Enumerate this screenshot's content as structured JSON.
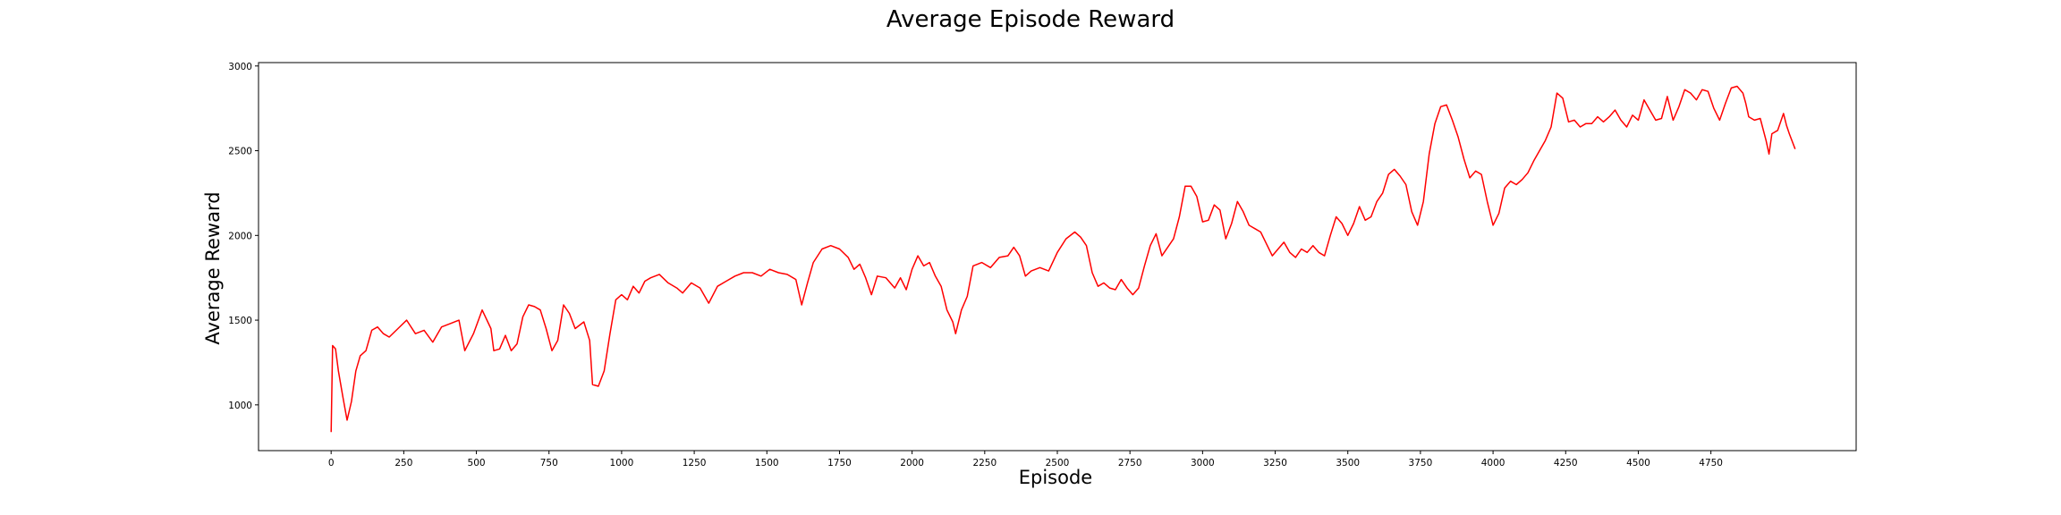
{
  "chart_data": {
    "type": "line",
    "title": "Average Episode Reward",
    "xlabel": "Episode",
    "ylabel": "Average Reward",
    "xlim": [
      -250,
      5250
    ],
    "ylim": [
      730,
      3020
    ],
    "xticks": [
      0,
      250,
      500,
      750,
      1000,
      1250,
      1500,
      1750,
      2000,
      2250,
      2500,
      2750,
      3000,
      3250,
      3500,
      3750,
      4000,
      4250,
      4500,
      4750
    ],
    "yticks": [
      1000,
      1500,
      2000,
      2500,
      3000
    ],
    "grid": false,
    "legend": "none",
    "series": [
      {
        "name": "",
        "color": "#ff0000",
        "points": [
          [
            0,
            840
          ],
          [
            5,
            1350
          ],
          [
            15,
            1330
          ],
          [
            25,
            1200
          ],
          [
            40,
            1050
          ],
          [
            55,
            910
          ],
          [
            70,
            1020
          ],
          [
            85,
            1200
          ],
          [
            100,
            1290
          ],
          [
            120,
            1320
          ],
          [
            140,
            1440
          ],
          [
            160,
            1460
          ],
          [
            180,
            1420
          ],
          [
            200,
            1400
          ],
          [
            230,
            1450
          ],
          [
            260,
            1500
          ],
          [
            290,
            1420
          ],
          [
            320,
            1440
          ],
          [
            350,
            1370
          ],
          [
            380,
            1460
          ],
          [
            410,
            1480
          ],
          [
            440,
            1500
          ],
          [
            460,
            1320
          ],
          [
            490,
            1420
          ],
          [
            520,
            1560
          ],
          [
            550,
            1450
          ],
          [
            560,
            1320
          ],
          [
            580,
            1330
          ],
          [
            600,
            1410
          ],
          [
            620,
            1320
          ],
          [
            640,
            1360
          ],
          [
            660,
            1520
          ],
          [
            680,
            1590
          ],
          [
            700,
            1580
          ],
          [
            720,
            1560
          ],
          [
            740,
            1450
          ],
          [
            760,
            1320
          ],
          [
            780,
            1380
          ],
          [
            800,
            1590
          ],
          [
            820,
            1540
          ],
          [
            840,
            1450
          ],
          [
            870,
            1490
          ],
          [
            890,
            1380
          ],
          [
            900,
            1120
          ],
          [
            920,
            1110
          ],
          [
            940,
            1200
          ],
          [
            960,
            1420
          ],
          [
            980,
            1620
          ],
          [
            1000,
            1650
          ],
          [
            1020,
            1620
          ],
          [
            1040,
            1700
          ],
          [
            1060,
            1660
          ],
          [
            1080,
            1730
          ],
          [
            1100,
            1750
          ],
          [
            1130,
            1770
          ],
          [
            1160,
            1720
          ],
          [
            1190,
            1690
          ],
          [
            1210,
            1660
          ],
          [
            1240,
            1720
          ],
          [
            1270,
            1690
          ],
          [
            1300,
            1600
          ],
          [
            1330,
            1700
          ],
          [
            1360,
            1730
          ],
          [
            1390,
            1760
          ],
          [
            1420,
            1780
          ],
          [
            1450,
            1780
          ],
          [
            1480,
            1760
          ],
          [
            1510,
            1800
          ],
          [
            1540,
            1780
          ],
          [
            1570,
            1770
          ],
          [
            1600,
            1740
          ],
          [
            1620,
            1590
          ],
          [
            1640,
            1720
          ],
          [
            1660,
            1840
          ],
          [
            1690,
            1920
          ],
          [
            1720,
            1940
          ],
          [
            1750,
            1920
          ],
          [
            1780,
            1870
          ],
          [
            1800,
            1800
          ],
          [
            1820,
            1830
          ],
          [
            1840,
            1750
          ],
          [
            1860,
            1650
          ],
          [
            1880,
            1760
          ],
          [
            1910,
            1750
          ],
          [
            1940,
            1690
          ],
          [
            1960,
            1750
          ],
          [
            1980,
            1680
          ],
          [
            2000,
            1800
          ],
          [
            2020,
            1880
          ],
          [
            2040,
            1820
          ],
          [
            2060,
            1840
          ],
          [
            2080,
            1760
          ],
          [
            2100,
            1700
          ],
          [
            2120,
            1560
          ],
          [
            2140,
            1490
          ],
          [
            2150,
            1420
          ],
          [
            2170,
            1560
          ],
          [
            2190,
            1640
          ],
          [
            2210,
            1820
          ],
          [
            2240,
            1840
          ],
          [
            2270,
            1810
          ],
          [
            2300,
            1870
          ],
          [
            2330,
            1880
          ],
          [
            2350,
            1930
          ],
          [
            2370,
            1880
          ],
          [
            2390,
            1760
          ],
          [
            2410,
            1790
          ],
          [
            2440,
            1810
          ],
          [
            2470,
            1790
          ],
          [
            2500,
            1900
          ],
          [
            2530,
            1980
          ],
          [
            2560,
            2020
          ],
          [
            2580,
            1990
          ],
          [
            2600,
            1940
          ],
          [
            2620,
            1780
          ],
          [
            2640,
            1700
          ],
          [
            2660,
            1720
          ],
          [
            2680,
            1690
          ],
          [
            2700,
            1680
          ],
          [
            2720,
            1740
          ],
          [
            2740,
            1690
          ],
          [
            2760,
            1650
          ],
          [
            2780,
            1690
          ],
          [
            2800,
            1820
          ],
          [
            2820,
            1940
          ],
          [
            2840,
            2010
          ],
          [
            2860,
            1880
          ],
          [
            2880,
            1930
          ],
          [
            2900,
            1980
          ],
          [
            2920,
            2110
          ],
          [
            2940,
            2290
          ],
          [
            2960,
            2290
          ],
          [
            2980,
            2230
          ],
          [
            3000,
            2080
          ],
          [
            3020,
            2090
          ],
          [
            3040,
            2180
          ],
          [
            3060,
            2150
          ],
          [
            3080,
            1980
          ],
          [
            3100,
            2070
          ],
          [
            3120,
            2200
          ],
          [
            3140,
            2140
          ],
          [
            3160,
            2060
          ],
          [
            3180,
            2040
          ],
          [
            3200,
            2020
          ],
          [
            3220,
            1950
          ],
          [
            3240,
            1880
          ],
          [
            3260,
            1920
          ],
          [
            3280,
            1960
          ],
          [
            3300,
            1900
          ],
          [
            3320,
            1870
          ],
          [
            3340,
            1920
          ],
          [
            3360,
            1900
          ],
          [
            3380,
            1940
          ],
          [
            3400,
            1900
          ],
          [
            3420,
            1880
          ],
          [
            3440,
            2000
          ],
          [
            3460,
            2110
          ],
          [
            3480,
            2070
          ],
          [
            3500,
            2000
          ],
          [
            3520,
            2070
          ],
          [
            3540,
            2170
          ],
          [
            3560,
            2090
          ],
          [
            3580,
            2110
          ],
          [
            3600,
            2200
          ],
          [
            3620,
            2250
          ],
          [
            3640,
            2360
          ],
          [
            3660,
            2390
          ],
          [
            3680,
            2350
          ],
          [
            3700,
            2300
          ],
          [
            3720,
            2140
          ],
          [
            3740,
            2060
          ],
          [
            3760,
            2200
          ],
          [
            3780,
            2480
          ],
          [
            3800,
            2660
          ],
          [
            3820,
            2760
          ],
          [
            3840,
            2770
          ],
          [
            3860,
            2680
          ],
          [
            3880,
            2580
          ],
          [
            3900,
            2450
          ],
          [
            3920,
            2340
          ],
          [
            3940,
            2380
          ],
          [
            3960,
            2360
          ],
          [
            3980,
            2200
          ],
          [
            4000,
            2060
          ],
          [
            4020,
            2130
          ],
          [
            4040,
            2280
          ],
          [
            4060,
            2320
          ],
          [
            4080,
            2300
          ],
          [
            4100,
            2330
          ],
          [
            4120,
            2370
          ],
          [
            4140,
            2440
          ],
          [
            4160,
            2500
          ],
          [
            4180,
            2560
          ],
          [
            4200,
            2640
          ],
          [
            4220,
            2840
          ],
          [
            4240,
            2810
          ],
          [
            4260,
            2670
          ],
          [
            4280,
            2680
          ],
          [
            4300,
            2640
          ],
          [
            4320,
            2660
          ],
          [
            4340,
            2660
          ],
          [
            4360,
            2700
          ],
          [
            4380,
            2670
          ],
          [
            4400,
            2700
          ],
          [
            4420,
            2740
          ],
          [
            4440,
            2680
          ],
          [
            4460,
            2640
          ],
          [
            4480,
            2710
          ],
          [
            4500,
            2680
          ],
          [
            4520,
            2800
          ],
          [
            4540,
            2740
          ],
          [
            4560,
            2680
          ],
          [
            4580,
            2690
          ],
          [
            4600,
            2820
          ],
          [
            4620,
            2680
          ],
          [
            4640,
            2760
          ],
          [
            4660,
            2860
          ],
          [
            4680,
            2840
          ],
          [
            4700,
            2800
          ],
          [
            4720,
            2860
          ],
          [
            4740,
            2850
          ],
          [
            4760,
            2750
          ],
          [
            4780,
            2680
          ],
          [
            4800,
            2780
          ],
          [
            4820,
            2870
          ],
          [
            4840,
            2880
          ],
          [
            4860,
            2840
          ],
          [
            4870,
            2780
          ],
          [
            4880,
            2700
          ],
          [
            4900,
            2680
          ],
          [
            4920,
            2690
          ],
          [
            4940,
            2560
          ],
          [
            4950,
            2480
          ],
          [
            4960,
            2600
          ],
          [
            4980,
            2620
          ],
          [
            5000,
            2720
          ],
          [
            5010,
            2650
          ],
          [
            5020,
            2600
          ],
          [
            5040,
            2510
          ]
        ]
      }
    ]
  }
}
